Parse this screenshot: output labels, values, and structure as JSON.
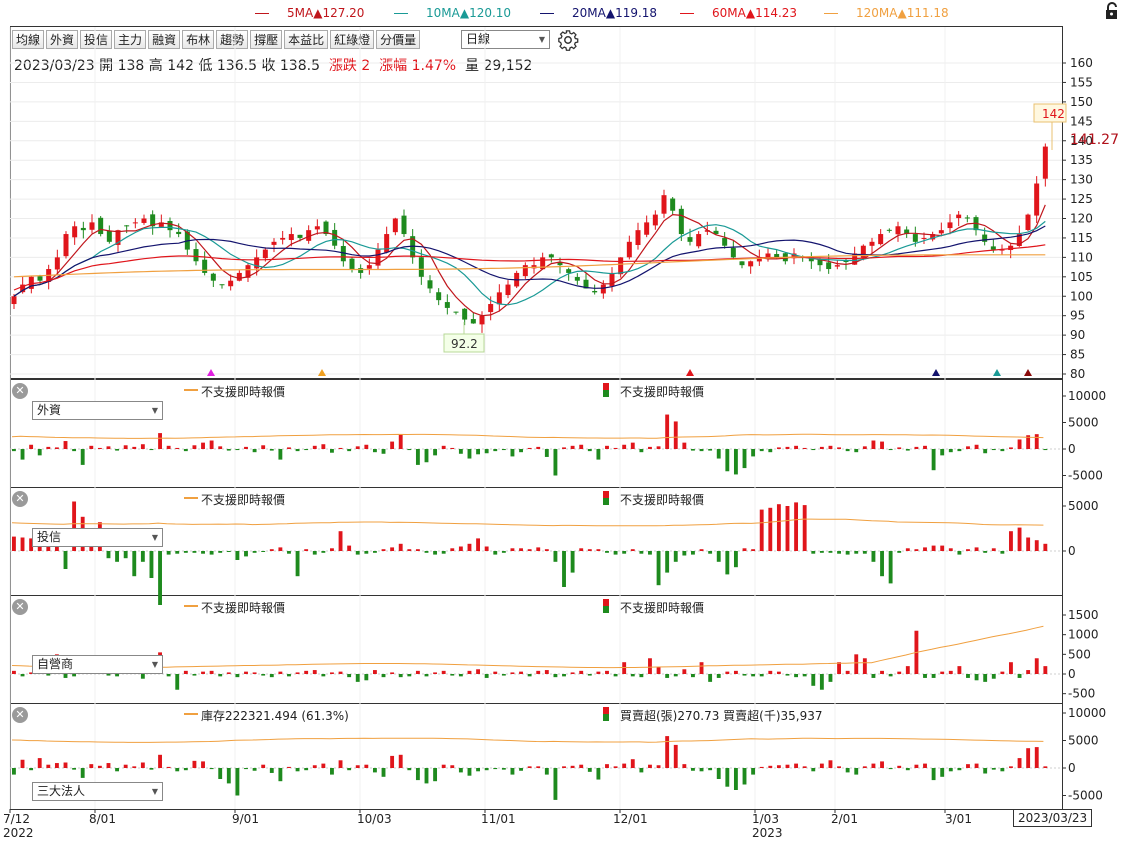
{
  "legend": [
    {
      "label": "5MA",
      "arrow": "▲",
      "value": "127.20",
      "color": "#c0161c",
      "x": 255
    },
    {
      "label": "10MA",
      "arrow": "▲",
      "value": "120.10",
      "color": "#1a9a96",
      "x": 394
    },
    {
      "label": "20MA",
      "arrow": "▲",
      "value": "119.18",
      "color": "#14146e",
      "x": 540
    },
    {
      "label": "60MA",
      "arrow": "▲",
      "value": "114.23",
      "color": "#e0151b",
      "x": 680
    },
    {
      "label": "120MA",
      "arrow": "▲",
      "value": "111.18",
      "color": "#f0a040",
      "x": 824
    }
  ],
  "lock_icon": "unlock-icon",
  "settings_icon": "gear-icon",
  "toolbar": {
    "buttons": [
      "均線",
      "外資",
      "投信",
      "主力",
      "融資",
      "布林",
      "趨勢",
      "撐壓",
      "本益比",
      "紅綠燈",
      "分價量"
    ],
    "period_select": "日線"
  },
  "info": {
    "date": "2023/03/23",
    "open_label": "開",
    "open": "138",
    "high_label": "高",
    "high": "142",
    "low_label": "低",
    "low": "136.5",
    "close_label": "收",
    "close": "138.5",
    "change_label": "漲跌",
    "change": "2",
    "pct_label": "漲幅",
    "pct": "1.47%",
    "vol_label": "量",
    "vol": "29,152"
  },
  "price_axis": {
    "ticks": [
      "160",
      "155",
      "150",
      "145",
      "140",
      "135",
      "130",
      "125",
      "120",
      "115",
      "110",
      "105",
      "100",
      "95",
      "90",
      "85",
      "80"
    ]
  },
  "annotations": {
    "max_box": "142",
    "last_price": "141.27",
    "min_box": "92.2"
  },
  "panels": [
    {
      "select": "外資",
      "ma_label": "不支援即時報價",
      "bar_label": "不支援即時報價",
      "ticks": [
        "10000",
        "5000",
        "0",
        "-5000"
      ]
    },
    {
      "select": "投信",
      "ma_label": "不支援即時報價",
      "bar_label": "不支援即時報價",
      "ticks": [
        "5000",
        "0"
      ]
    },
    {
      "select": "自營商",
      "ma_label": "不支援即時報價",
      "bar_label": "不支援即時報價",
      "ticks": [
        "1500",
        "1000",
        "500",
        "0",
        "-500"
      ]
    },
    {
      "select": "三大法人",
      "ma_label": "庫存222321.494 (61.3%)",
      "bar_label": "買賣超(張)270.73 買賣超(千)35,937",
      "ticks": [
        "10000",
        "5000",
        "0",
        "-5000"
      ]
    }
  ],
  "date_axis": {
    "labels": [
      {
        "text": "7/12",
        "sub": "2022"
      },
      {
        "text": "8/01",
        "sub": ""
      },
      {
        "text": "9/01",
        "sub": ""
      },
      {
        "text": "10/03",
        "sub": ""
      },
      {
        "text": "11/01",
        "sub": ""
      },
      {
        "text": "12/01",
        "sub": ""
      },
      {
        "text": "1/03",
        "sub": "2023"
      },
      {
        "text": "2/01",
        "sub": ""
      },
      {
        "text": "3/01",
        "sub": ""
      }
    ],
    "current": "2023/03/23"
  },
  "chart_data": {
    "type": "candlestick",
    "title": "",
    "x_range": [
      "2022/07/12",
      "2023/03/23"
    ],
    "ylim": [
      80,
      162
    ],
    "ohlc_last": {
      "date": "2023/03/23",
      "open": 138,
      "high": 142,
      "low": 136.5,
      "close": 138.5,
      "volume": 29152
    },
    "marked_high": 142,
    "marked_low": 92.2,
    "ma_last": {
      "5MA": 127.2,
      "10MA": 120.1,
      "20MA": 119.18,
      "60MA": 114.23,
      "120MA": 111.18
    },
    "close_series": [
      100,
      103,
      105,
      104,
      107,
      110,
      116,
      118,
      117,
      119,
      116,
      114,
      117,
      118,
      119,
      120,
      118,
      119,
      117,
      116,
      112,
      109,
      106,
      104,
      103,
      104,
      106,
      108,
      110,
      112,
      114,
      115,
      116,
      115,
      117,
      118,
      116,
      113,
      109,
      107,
      106,
      108,
      112,
      116,
      120,
      116,
      110,
      105,
      102,
      99,
      97,
      96,
      94,
      93,
      95,
      98,
      101,
      103,
      106,
      108,
      108,
      110,
      110,
      108,
      106,
      104,
      102,
      101,
      103,
      106,
      110,
      114,
      117,
      119,
      121,
      126,
      122,
      116,
      114,
      116,
      117,
      116,
      113,
      110,
      108,
      109,
      110,
      111,
      110,
      109,
      111,
      110,
      109,
      108,
      107,
      108,
      109,
      111,
      113,
      114,
      116,
      117,
      118,
      116,
      114,
      115,
      116,
      117,
      119,
      121,
      120,
      117,
      114,
      112,
      112,
      113,
      116,
      121,
      129,
      138.5
    ],
    "volume_panels": [
      {
        "name": "外資",
        "values": [
          -400,
          -2000,
          800,
          -1200,
          400,
          300,
          1500,
          -400,
          -3000,
          600,
          200,
          500,
          -300,
          700,
          400,
          900,
          -200,
          3000,
          600,
          200,
          -400,
          700,
          1200,
          1600,
          500,
          -300,
          -200,
          400,
          -600,
          700,
          -300,
          -2000,
          300,
          -400,
          -200,
          600,
          900,
          -700,
          200,
          -400,
          500,
          800,
          -600,
          -900,
          1400,
          2800,
          -200,
          -3000,
          -2500,
          -1200,
          600,
          200,
          -900,
          -1800,
          -1000,
          -800,
          -400,
          -200,
          -1400,
          -600,
          200,
          400,
          -1500,
          -5000,
          300,
          600,
          800,
          -400,
          -2000,
          600,
          200,
          800,
          1200,
          -600,
          400,
          500,
          6500,
          5200,
          1200,
          -300,
          -400,
          -300,
          -1800,
          -4200,
          -4800,
          -3600,
          -1400,
          -400,
          -600,
          300,
          400,
          600,
          200,
          -200,
          400,
          600,
          300,
          -400,
          -600,
          500,
          1600,
          1400,
          -200,
          300,
          -300,
          400,
          600,
          -4000,
          -1200,
          -600,
          -400,
          500,
          800,
          -800,
          -200,
          -400,
          300,
          1800,
          2600,
          2800,
          -200
        ],
        "ma_level": "orange"
      },
      {
        "name": "投信",
        "values": [
          1600,
          1500,
          1400,
          1500,
          1300,
          1200,
          -2000,
          5500,
          3800,
          2300,
          3200,
          -800,
          -1200,
          -800,
          -2800,
          -1200,
          -3000,
          -6000,
          -400,
          -300,
          -200,
          -200,
          -300,
          -400,
          -200,
          -100,
          -1000,
          -600,
          -200,
          -100,
          200,
          400,
          -300,
          -2800,
          200,
          -400,
          -200,
          300,
          2200,
          600,
          -400,
          -300,
          -200,
          200,
          400,
          800,
          200,
          200,
          -200,
          -400,
          -300,
          300,
          500,
          800,
          1400,
          500,
          -400,
          -200,
          300,
          300,
          200,
          400,
          200,
          -1200,
          -4000,
          -2400,
          300,
          200,
          200,
          -200,
          -400,
          -300,
          200,
          -300,
          -400,
          -3800,
          -2400,
          -1200,
          -500,
          -400,
          200,
          -300,
          -1200,
          -2600,
          -1800,
          300,
          200,
          4600,
          4800,
          5200,
          5000,
          5400,
          5100,
          -300,
          -200,
          -200,
          -300,
          -400,
          -300,
          -300,
          -1200,
          -2800,
          -3600,
          -200,
          300,
          200,
          400,
          600,
          600,
          300,
          -400,
          200,
          400,
          -200,
          300,
          -300,
          2200,
          2600,
          1500,
          1200,
          800
        ],
        "ma_level": "orange"
      },
      {
        "name": "自營商",
        "values": [
          80,
          -60,
          40,
          120,
          -40,
          500,
          -100,
          -60,
          80,
          40,
          60,
          -40,
          -60,
          40,
          100,
          -120,
          60,
          550,
          -60,
          -400,
          80,
          -40,
          60,
          80,
          -60,
          40,
          -80,
          60,
          40,
          -40,
          -80,
          60,
          -60,
          40,
          80,
          100,
          -60,
          40,
          60,
          -80,
          -200,
          -160,
          100,
          -80,
          40,
          -80,
          -60,
          80,
          -60,
          40,
          80,
          -40,
          -60,
          80,
          120,
          -100,
          60,
          -40,
          40,
          60,
          -60,
          80,
          100,
          -80,
          -60,
          40,
          80,
          -40,
          60,
          80,
          -60,
          300,
          -60,
          -80,
          400,
          180,
          -100,
          -60,
          120,
          -80,
          300,
          -200,
          -100,
          60,
          80,
          -40,
          -60,
          -60,
          80,
          60,
          -40,
          -80,
          -60,
          -300,
          -400,
          -200,
          300,
          80,
          500,
          400,
          -100,
          80,
          -60,
          60,
          200,
          1100,
          -100,
          -100,
          60,
          80,
          200,
          -100,
          -160,
          -200,
          -120,
          60,
          300,
          -100,
          100,
          400,
          200
        ],
        "ma_level": "orange"
      },
      {
        "name": "三大法人",
        "values": [
          -1200,
          1500,
          -400,
          1800,
          600,
          900,
          1000,
          -300,
          -1800,
          700,
          400,
          900,
          -600,
          600,
          300,
          1000,
          -300,
          2400,
          200,
          -600,
          -400,
          1300,
          1200,
          -200,
          -2000,
          -2800,
          -5000,
          -200,
          -500,
          600,
          -900,
          -2400,
          200,
          -600,
          -400,
          500,
          800,
          -1200,
          1400,
          -400,
          500,
          600,
          -800,
          -1600,
          2200,
          2400,
          -400,
          -2200,
          -2800,
          -2400,
          600,
          500,
          -800,
          -1400,
          -600,
          -400,
          -200,
          -300,
          -1200,
          -500,
          300,
          300,
          -1200,
          -5800,
          300,
          400,
          600,
          -700,
          -2100,
          700,
          300,
          800,
          1600,
          -800,
          600,
          500,
          5800,
          4200,
          700,
          -500,
          -600,
          -400,
          -2000,
          -3400,
          -4000,
          -3000,
          -1200,
          200,
          400,
          500,
          600,
          800,
          300,
          -600,
          800,
          1400,
          300,
          -800,
          -1200,
          300,
          800,
          1200,
          -200,
          400,
          -400,
          600,
          800,
          -2200,
          -1600,
          -600,
          -400,
          700,
          800,
          -1000,
          -300,
          -600,
          300,
          1800,
          3600,
          3800,
          300
        ],
        "ma_level": "orange"
      }
    ]
  }
}
